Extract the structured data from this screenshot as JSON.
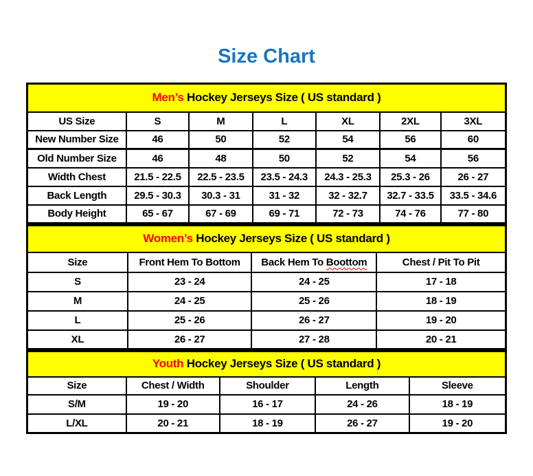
{
  "title": "Size Chart",
  "colors": {
    "title_blue": "#1b75bb",
    "accent_red": "#ff0000",
    "band_yellow": "#ffff00",
    "border_black": "#000000",
    "squiggle_red": "#e00000"
  },
  "chart_data": [
    {
      "type": "table",
      "id": "mens",
      "title_accent": "Men’s",
      "title_rest": "Hockey Jerseys Size ( US standard )",
      "columns": [
        {
          "label": "US Size"
        },
        {
          "label": "S"
        },
        {
          "label": "M"
        },
        {
          "label": "L"
        },
        {
          "label": "XL"
        },
        {
          "label": "2XL"
        },
        {
          "label": "3XL"
        }
      ],
      "rows": [
        {
          "label": "New Number Size",
          "values": [
            "46",
            "50",
            "52",
            "54",
            "56",
            "60"
          ]
        },
        {
          "label": "Old Number Size",
          "values": [
            "46",
            "48",
            "50",
            "52",
            "54",
            "56"
          ]
        },
        {
          "label": "Width Chest",
          "values": [
            "21.5 - 22.5",
            "22.5 - 23.5",
            "23.5 - 24.3",
            "24.3 - 25.3",
            "25.3 - 26",
            "26 - 27"
          ]
        },
        {
          "label": "Back Length",
          "values": [
            "29.5 - 30.3",
            "30.3 - 31",
            "31 - 32",
            "32 - 32.7",
            "32.7 - 33.5",
            "33.5 - 34.6"
          ]
        },
        {
          "label": "Body Height",
          "values": [
            "65 - 67",
            "67 - 69",
            "69 - 71",
            "72 - 73",
            "74 - 76",
            "77 - 80"
          ]
        }
      ]
    },
    {
      "type": "table",
      "id": "womens",
      "title_accent": "Women’s",
      "title_rest": "Hockey Jerseys Size ( US standard )",
      "columns": [
        {
          "label": "Size"
        },
        {
          "label": "Front Hem To Bottom"
        },
        {
          "label": "Back Hem To Boottom",
          "squiggle": "Boottom"
        },
        {
          "label": "Chest / Pit To Pit"
        }
      ],
      "rows": [
        {
          "label": "S",
          "values": [
            "23 - 24",
            "24 - 25",
            "17 - 18"
          ]
        },
        {
          "label": "M",
          "values": [
            "24 - 25",
            "25 - 26",
            "18 - 19"
          ]
        },
        {
          "label": "L",
          "values": [
            "25 - 26",
            "26 - 27",
            "19 - 20"
          ]
        },
        {
          "label": "XL",
          "values": [
            "26 - 27",
            "27 - 28",
            "20 - 21"
          ]
        }
      ]
    },
    {
      "type": "table",
      "id": "youth",
      "title_accent": "Youth",
      "title_rest": "Hockey Jerseys Size ( US standard )",
      "columns": [
        {
          "label": "Size"
        },
        {
          "label": "Chest / Width"
        },
        {
          "label": "Shoulder"
        },
        {
          "label": "Length"
        },
        {
          "label": "Sleeve"
        }
      ],
      "rows": [
        {
          "label": "S/M",
          "values": [
            "19 - 20",
            "16 - 17",
            "24 - 26",
            "18 - 19"
          ]
        },
        {
          "label": "L/XL",
          "values": [
            "20 - 21",
            "18 - 19",
            "26 - 27",
            "19 - 20"
          ]
        }
      ]
    }
  ]
}
